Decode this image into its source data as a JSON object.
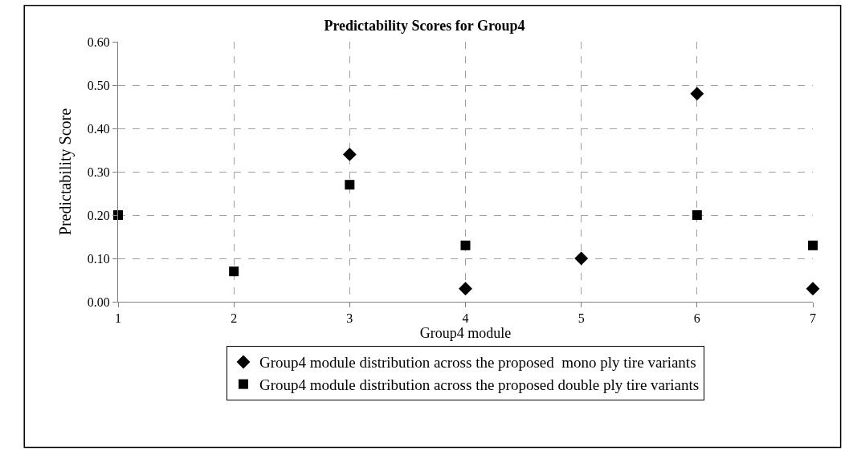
{
  "chart_data": {
    "type": "scatter",
    "title": "Predictability Scores for Group4",
    "xlabel": "Group4 module",
    "ylabel": "Predictability Score",
    "x": [
      1,
      2,
      3,
      4,
      5,
      6,
      7
    ],
    "series": [
      {
        "name": "Group4 module distribution across the proposed  mono ply tire variants",
        "color": "#000000",
        "marker": "diamond",
        "values": [
          null,
          null,
          0.34,
          0.03,
          0.1,
          0.48,
          0.03
        ]
      },
      {
        "name": "Group4 module distribution across the proposed double ply tire variants",
        "color": "#000000",
        "marker": "square",
        "values": [
          0.2,
          0.07,
          0.27,
          0.13,
          null,
          0.2,
          0.13
        ]
      }
    ],
    "xlim": [
      1,
      7
    ],
    "xticks": [
      1,
      2,
      3,
      4,
      5,
      6,
      7
    ],
    "ylim": [
      0,
      0.6
    ],
    "yticks": [
      {
        "value": 0,
        "label": "0.00"
      },
      {
        "value": 0.1,
        "label": "0.10"
      },
      {
        "value": 0.2,
        "label": "0.20"
      },
      {
        "value": 0.3,
        "label": "0.30"
      },
      {
        "value": 0.4,
        "label": "0.40"
      },
      {
        "value": 0.5,
        "label": "0.50"
      },
      {
        "value": 0.6,
        "label": "0.60"
      }
    ],
    "grid": true,
    "legend": "bottom"
  }
}
